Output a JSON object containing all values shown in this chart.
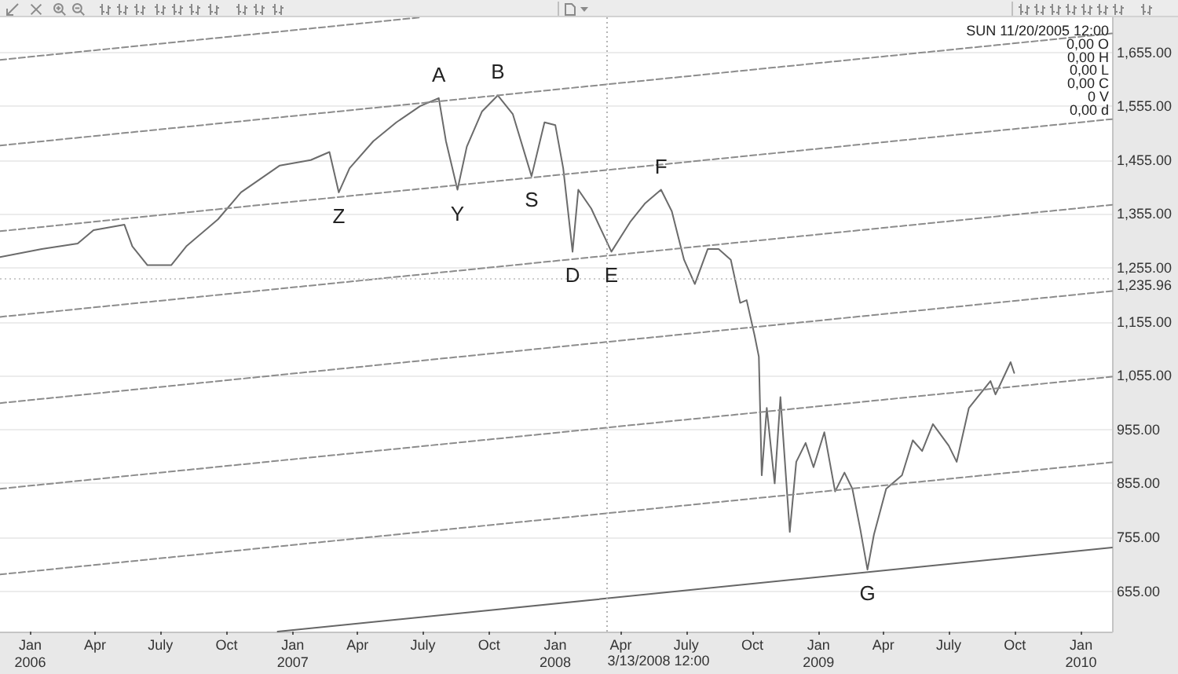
{
  "chart_data": {
    "type": "line",
    "annotations": [
      "SUN 11/20/2005 12:00",
      "0,00 O",
      "0,00 H",
      "0,00 L",
      "0,00 C",
      "0 V",
      "0,00 d",
      {
        "text": "A",
        "x": "2007-07-23",
        "y": 1570
      },
      {
        "text": "B",
        "x": "2007-10-13",
        "y": 1575
      },
      {
        "text": "Z",
        "x": "2007-03-06",
        "y": 1395
      },
      {
        "text": "Y",
        "x": "2007-08-18",
        "y": 1400
      },
      {
        "text": "S",
        "x": "2007-11-29",
        "y": 1425
      },
      {
        "text": "D",
        "x": "2008-01-25",
        "y": 1285
      },
      {
        "text": "E",
        "x": "2008-03-19",
        "y": 1285
      },
      {
        "text": "F",
        "x": "2008-05-27",
        "y": 1400
      },
      {
        "text": "G",
        "x": "2009-03-10",
        "y": 695
      }
    ],
    "xlim": [
      "2005-11-20",
      "2010-02-13"
    ],
    "ylim": [
      580,
      1720
    ],
    "xticks": [
      {
        "value": "2006-01-01",
        "label": "Jan\n2006"
      },
      {
        "value": "2006-04-01",
        "label": "Apr"
      },
      {
        "value": "2006-07-01",
        "label": "July"
      },
      {
        "value": "2006-10-01",
        "label": "Oct"
      },
      {
        "value": "2007-01-01",
        "label": "Jan\n2007"
      },
      {
        "value": "2007-04-01",
        "label": "Apr"
      },
      {
        "value": "2007-07-01",
        "label": "July"
      },
      {
        "value": "2007-10-01",
        "label": "Oct"
      },
      {
        "value": "2008-01-01",
        "label": "Jan\n2008"
      },
      {
        "value": "2008-04-01",
        "label": "Apr"
      },
      {
        "value": "2008-07-01",
        "label": "July"
      },
      {
        "value": "2008-10-01",
        "label": "Oct"
      },
      {
        "value": "2009-01-01",
        "label": "Jan\n2009"
      },
      {
        "value": "2009-04-01",
        "label": "Apr"
      },
      {
        "value": "2009-07-01",
        "label": "July"
      },
      {
        "value": "2009-10-01",
        "label": "Oct"
      },
      {
        "value": "2010-01-01",
        "label": "Jan\n2010"
      }
    ],
    "yticks": [
      {
        "value": 655,
        "label": "655.00"
      },
      {
        "value": 755,
        "label": "755.00"
      },
      {
        "value": 855,
        "label": "855.00"
      },
      {
        "value": 955,
        "label": "955.00"
      },
      {
        "value": 1055,
        "label": "1,055.00"
      },
      {
        "value": 1155,
        "label": "1,155.00"
      },
      {
        "value": 1255,
        "label": "1,255.00"
      },
      {
        "value": 1355,
        "label": "1,355.00"
      },
      {
        "value": 1455,
        "label": "1,455.00"
      },
      {
        "value": 1555,
        "label": "1,555.00"
      },
      {
        "value": 1655,
        "label": "1,655.00"
      }
    ],
    "grid": "y",
    "marker": "none",
    "line_style": "solid",
    "ref_lines": [
      {
        "axis": "x",
        "value": "2008-03-13T12:00",
        "label": "3/13/2008 12:00",
        "color": "#b4b4b4",
        "line_style": "dotted"
      },
      {
        "axis": "y",
        "value": 1235.96,
        "label": "1,235.96",
        "color": "#cccccc",
        "line_style": "dotted"
      }
    ],
    "series": [
      {
        "color": "#6b6b6b",
        "x": [
          "2005-11-20",
          "2006-01-17",
          "2006-03-08",
          "2006-03-30",
          "2006-05-12",
          "2006-05-23",
          "2006-06-13",
          "2006-07-16",
          "2006-08-06",
          "2006-09-19",
          "2006-10-21",
          "2006-12-14",
          "2007-01-26",
          "2007-02-21",
          "2007-03-06",
          "2007-03-21",
          "2007-04-23",
          "2007-05-25",
          "2007-06-27",
          "2007-07-23",
          "2007-08-02",
          "2007-08-18",
          "2007-08-31",
          "2007-09-21",
          "2007-10-13",
          "2007-11-03",
          "2007-11-29",
          "2007-12-17",
          "2008-01-01",
          "2008-01-12",
          "2008-01-25",
          "2008-02-02",
          "2008-02-20",
          "2008-03-12",
          "2008-03-19",
          "2008-04-14",
          "2008-05-05",
          "2008-05-27",
          "2008-06-11",
          "2008-06-28",
          "2008-07-13",
          "2008-07-31",
          "2008-08-15",
          "2008-09-01",
          "2008-09-14",
          "2008-09-23",
          "2008-10-04",
          "2008-10-10",
          "2008-10-14",
          "2008-10-21",
          "2008-11-01",
          "2008-11-09",
          "2008-11-22",
          "2008-12-01",
          "2008-12-14",
          "2008-12-25",
          "2009-01-09",
          "2009-01-24",
          "2009-02-06",
          "2009-02-17",
          "2009-02-28",
          "2009-03-10",
          "2009-03-19",
          "2009-04-05",
          "2009-04-27",
          "2009-05-12",
          "2009-05-25",
          "2009-06-09",
          "2009-07-01",
          "2009-07-12",
          "2009-07-29",
          "2009-08-28",
          "2009-09-04",
          "2009-09-25",
          "2009-09-30"
        ],
        "values": [
          1275,
          1290,
          1300,
          1325,
          1335,
          1295,
          1260,
          1260,
          1295,
          1345,
          1395,
          1445,
          1455,
          1470,
          1395,
          1440,
          1490,
          1525,
          1555,
          1570,
          1490,
          1400,
          1480,
          1545,
          1575,
          1540,
          1425,
          1525,
          1520,
          1440,
          1285,
          1400,
          1365,
          1305,
          1285,
          1340,
          1375,
          1400,
          1360,
          1270,
          1225,
          1290,
          1290,
          1270,
          1190,
          1195,
          1130,
          1090,
          870,
          995,
          855,
          1015,
          765,
          895,
          930,
          885,
          950,
          840,
          875,
          845,
          770,
          695,
          760,
          845,
          870,
          935,
          915,
          965,
          925,
          895,
          995,
          1045,
          1020,
          1080,
          1060
        ]
      },
      {
        "type": "line",
        "color": "#8c8c8c",
        "line_style": "dashed",
        "x": [
          "2005-11-20",
          "2007-06-29"
        ],
        "values": [
          1641,
          1720
        ]
      },
      {
        "type": "line",
        "color": "#8c8c8c",
        "line_style": "dashed",
        "x": [
          "2005-11-20",
          "2010-02-13"
        ],
        "values": [
          1482,
          1690
        ]
      },
      {
        "type": "line",
        "color": "#8c8c8c",
        "line_style": "dashed",
        "x": [
          "2005-11-20",
          "2010-02-13"
        ],
        "values": [
          1323,
          1531
        ]
      },
      {
        "type": "line",
        "color": "#8c8c8c",
        "line_style": "dashed",
        "x": [
          "2005-11-20",
          "2010-02-13"
        ],
        "values": [
          1164,
          1372
        ]
      },
      {
        "type": "line",
        "color": "#8c8c8c",
        "line_style": "dashed",
        "x": [
          "2005-11-20",
          "2010-02-13"
        ],
        "values": [
          1004,
          1212
        ]
      },
      {
        "type": "line",
        "color": "#8c8c8c",
        "line_style": "dashed",
        "x": [
          "2005-11-20",
          "2010-02-13"
        ],
        "values": [
          845,
          1053
        ]
      },
      {
        "type": "line",
        "color": "#8c8c8c",
        "line_style": "dashed",
        "x": [
          "2005-11-20",
          "2010-02-13"
        ],
        "values": [
          686,
          894
        ]
      },
      {
        "type": "line",
        "color": "#666666",
        "line_style": "solid",
        "x": [
          "2006-12-11",
          "2010-02-13"
        ],
        "values": [
          580,
          736
        ]
      }
    ]
  }
}
